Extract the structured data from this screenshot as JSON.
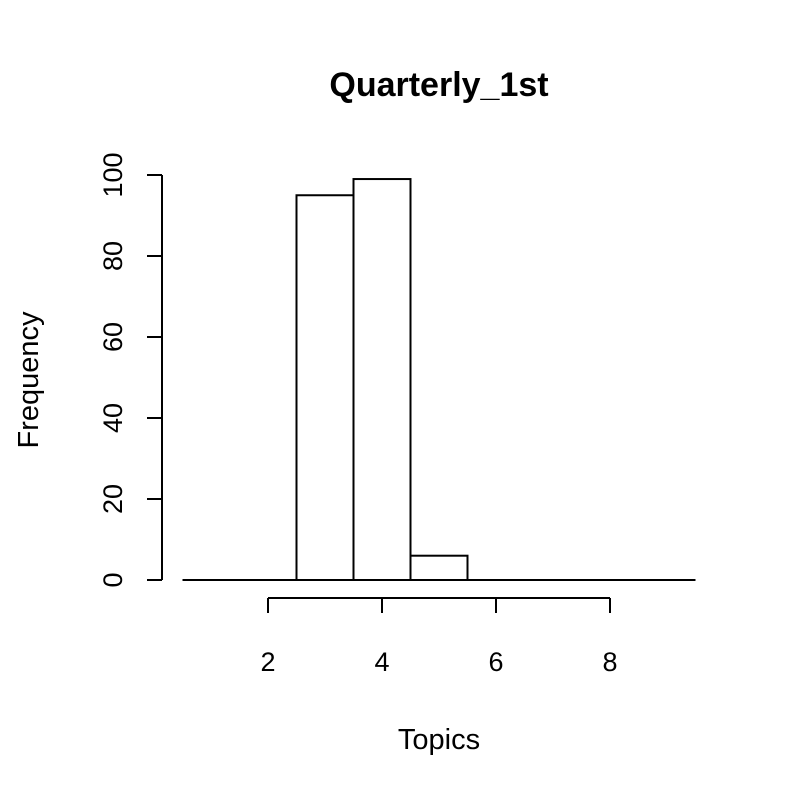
{
  "chart_data": {
    "type": "bar",
    "title": "Quarterly_1st",
    "xlabel": "Topics",
    "ylabel": "Frequency",
    "bin_width": 1,
    "bins": [
      {
        "start": 0.5,
        "end": 1.5,
        "count": 0
      },
      {
        "start": 1.5,
        "end": 2.5,
        "count": 0
      },
      {
        "start": 2.5,
        "end": 3.5,
        "count": 95
      },
      {
        "start": 3.5,
        "end": 4.5,
        "count": 99
      },
      {
        "start": 4.5,
        "end": 5.5,
        "count": 6
      },
      {
        "start": 5.5,
        "end": 6.5,
        "count": 0
      },
      {
        "start": 6.5,
        "end": 7.5,
        "count": 0
      },
      {
        "start": 7.5,
        "end": 8.5,
        "count": 0
      },
      {
        "start": 8.5,
        "end": 9.5,
        "count": 0
      }
    ],
    "xlim": [
      0.5,
      9.5
    ],
    "ylim": [
      0,
      100
    ],
    "x_ticks": [
      2,
      4,
      6,
      8
    ],
    "y_ticks": [
      0,
      20,
      40,
      60,
      80,
      100
    ],
    "grid": false,
    "legend": "none"
  }
}
